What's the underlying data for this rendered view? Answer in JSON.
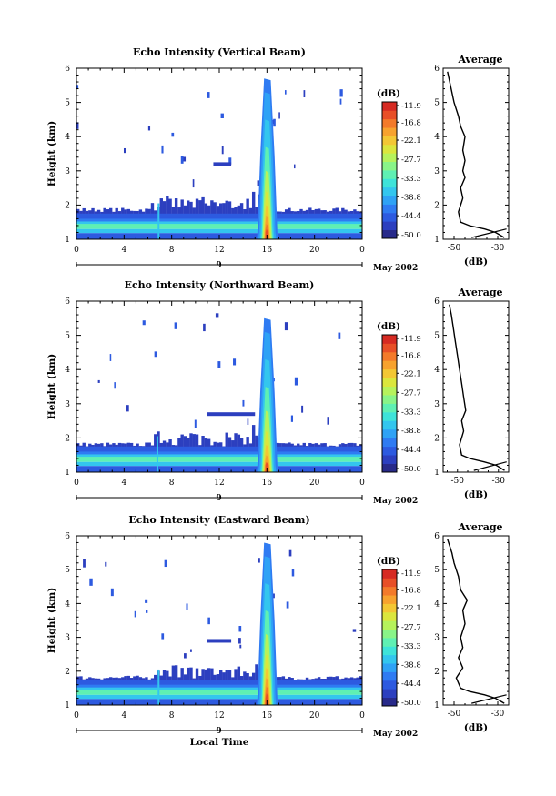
{
  "chart_data": [
    {
      "type": "heatmap",
      "title": "Echo Intensity (Vertical Beam)",
      "xlabel": "",
      "ylabel": "Height (km)",
      "x_ticks": [
        "0",
        "4",
        "8",
        "12",
        "16",
        "20",
        "0"
      ],
      "y_ticks": [
        "1",
        "2",
        "3",
        "4",
        "5",
        "6"
      ],
      "xlim": [
        0,
        24
      ],
      "ylim": [
        1,
        6
      ],
      "date_day": "9",
      "date_month": "May 2002",
      "features": {
        "boundary_layer_top_km": 1.8,
        "surface_layer_km": [
          1.2,
          1.45
        ],
        "plume_time_h": 16,
        "plume_top_km": 5.7,
        "fine_line_time_h": 6.9
      },
      "colorbar": {
        "label": "(dB)",
        "ticks": [
          "-11.9",
          "-16.8",
          "-22.1",
          "-27.7",
          "-33.3",
          "-38.8",
          "-44.4",
          "-50.0"
        ],
        "range": [
          -50.0,
          -11.9
        ],
        "colors": [
          "#282a8a",
          "#2c3fbf",
          "#2d5ae0",
          "#2f7bf2",
          "#2fa2f5",
          "#33c6ee",
          "#3ee3d9",
          "#5ff0b3",
          "#89f488",
          "#b6f25c",
          "#dbe63d",
          "#f3c734",
          "#f7a22e",
          "#f37a2a",
          "#e84f27",
          "#d62a22"
        ]
      },
      "average": {
        "title": "Average",
        "xlabel": "(dB)",
        "x_ticks": [
          "-50",
          "-30"
        ],
        "xlim": [
          -55,
          -25
        ],
        "y_ticks": [
          "1",
          "2",
          "3",
          "4",
          "5",
          "6"
        ],
        "profile": [
          [
            -27,
            1.05
          ],
          [
            -31,
            1.2
          ],
          [
            -36,
            1.3
          ],
          [
            -43,
            1.4
          ],
          [
            -47,
            1.5
          ],
          [
            -48,
            1.8
          ],
          [
            -46,
            2.2
          ],
          [
            -47,
            2.5
          ],
          [
            -45,
            2.8
          ],
          [
            -46,
            3.0
          ],
          [
            -45,
            3.3
          ],
          [
            -46,
            3.6
          ],
          [
            -45,
            4.0
          ],
          [
            -47,
            4.3
          ],
          [
            -48,
            4.6
          ],
          [
            -50,
            5.0
          ],
          [
            -51,
            5.3
          ],
          [
            -52,
            5.6
          ],
          [
            -53,
            5.9
          ]
        ]
      }
    },
    {
      "type": "heatmap",
      "title": "Echo Intensity (Northward Beam)",
      "xlabel": "",
      "ylabel": "Height (km)",
      "x_ticks": [
        "0",
        "4",
        "8",
        "12",
        "16",
        "20",
        "0"
      ],
      "y_ticks": [
        "1",
        "2",
        "3",
        "4",
        "5",
        "6"
      ],
      "xlim": [
        0,
        24
      ],
      "ylim": [
        1,
        6
      ],
      "date_day": "9",
      "date_month": "May 2002",
      "features": {
        "boundary_layer_top_km": 1.75,
        "surface_layer_km": [
          1.2,
          1.45
        ],
        "plume_time_h": 16,
        "plume_top_km": 5.5,
        "fine_line_time_h": 6.8
      },
      "colorbar": {
        "label": "(dB)",
        "ticks": [
          "-11.9",
          "-16.8",
          "-22.1",
          "-27.7",
          "-33.3",
          "-38.8",
          "-44.4",
          "-50.0"
        ],
        "range": [
          -50.0,
          -11.9
        ],
        "colors": [
          "#282a8a",
          "#2c3fbf",
          "#2d5ae0",
          "#2f7bf2",
          "#2fa2f5",
          "#33c6ee",
          "#3ee3d9",
          "#5ff0b3",
          "#89f488",
          "#b6f25c",
          "#dbe63d",
          "#f3c734",
          "#f7a22e",
          "#f37a2a",
          "#e84f27",
          "#d62a22"
        ]
      },
      "average": {
        "title": "Average",
        "xlabel": "(dB)",
        "x_ticks": [
          "-50",
          "-30"
        ],
        "xlim": [
          -57,
          -25
        ],
        "y_ticks": [
          "1",
          "2",
          "3",
          "4",
          "5",
          "6"
        ],
        "profile": [
          [
            -27,
            1.05
          ],
          [
            -31,
            1.2
          ],
          [
            -37,
            1.3
          ],
          [
            -44,
            1.4
          ],
          [
            -48,
            1.5
          ],
          [
            -49,
            1.8
          ],
          [
            -47,
            2.2
          ],
          [
            -48,
            2.5
          ],
          [
            -46,
            2.8
          ],
          [
            -47,
            3.2
          ],
          [
            -48,
            3.6
          ],
          [
            -49,
            4.0
          ],
          [
            -50,
            4.4
          ],
          [
            -51,
            4.8
          ],
          [
            -52,
            5.2
          ],
          [
            -53,
            5.6
          ],
          [
            -54,
            5.9
          ]
        ]
      }
    },
    {
      "type": "heatmap",
      "title": "Echo Intensity (Eastward Beam)",
      "xlabel": "Local Time",
      "ylabel": "Height (km)",
      "x_ticks": [
        "0",
        "4",
        "8",
        "12",
        "16",
        "20",
        "0"
      ],
      "y_ticks": [
        "1",
        "2",
        "3",
        "4",
        "5",
        "6"
      ],
      "xlim": [
        0,
        24
      ],
      "ylim": [
        1,
        6
      ],
      "date_day": "9",
      "date_month": "May 2002",
      "features": {
        "boundary_layer_top_km": 1.75,
        "surface_layer_km": [
          1.2,
          1.45
        ],
        "plume_time_h": 16,
        "plume_top_km": 5.8,
        "fine_line_time_h": 6.9
      },
      "colorbar": {
        "label": "(dB)",
        "ticks": [
          "-11.9",
          "-16.8",
          "-22.1",
          "-27.7",
          "-33.3",
          "-38.8",
          "-44.4",
          "-50.0"
        ],
        "range": [
          -50.0,
          -11.9
        ],
        "colors": [
          "#282a8a",
          "#2c3fbf",
          "#2d5ae0",
          "#2f7bf2",
          "#2fa2f5",
          "#33c6ee",
          "#3ee3d9",
          "#5ff0b3",
          "#89f488",
          "#b6f25c",
          "#dbe63d",
          "#f3c734",
          "#f7a22e",
          "#f37a2a",
          "#e84f27",
          "#d62a22"
        ]
      },
      "average": {
        "title": "Average",
        "xlabel": "(dB)",
        "x_ticks": [
          "-50",
          "-30"
        ],
        "xlim": [
          -55,
          -25
        ],
        "y_ticks": [
          "1",
          "2",
          "3",
          "4",
          "5",
          "6"
        ],
        "profile": [
          [
            -27,
            1.05
          ],
          [
            -31,
            1.2
          ],
          [
            -36,
            1.3
          ],
          [
            -43,
            1.4
          ],
          [
            -47,
            1.5
          ],
          [
            -49,
            1.8
          ],
          [
            -46,
            2.1
          ],
          [
            -48,
            2.4
          ],
          [
            -46,
            2.7
          ],
          [
            -47,
            3.0
          ],
          [
            -45,
            3.4
          ],
          [
            -46,
            3.8
          ],
          [
            -44,
            4.1
          ],
          [
            -47,
            4.4
          ],
          [
            -48,
            4.8
          ],
          [
            -50,
            5.2
          ],
          [
            -51,
            5.5
          ],
          [
            -53,
            5.9
          ]
        ]
      }
    }
  ]
}
